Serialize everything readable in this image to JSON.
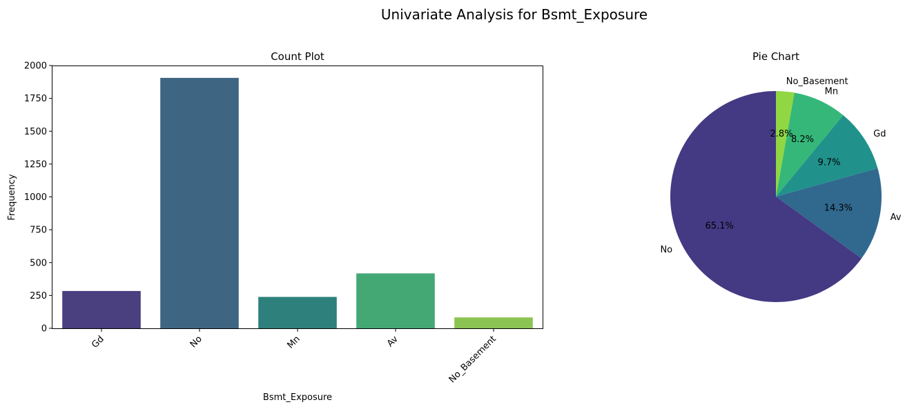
{
  "figure": {
    "title": "Univariate Analysis for Bsmt_Exposure"
  },
  "chart_data": [
    {
      "type": "bar",
      "title": "Count Plot",
      "xlabel": "Bsmt_Exposure",
      "ylabel": "Frequency",
      "categories": [
        "Gd",
        "No",
        "Mn",
        "Av",
        "No_Basement"
      ],
      "values": [
        284,
        1906,
        239,
        418,
        83
      ],
      "colors": [
        "#4a3f7f",
        "#3e6683",
        "#2e807c",
        "#44a875",
        "#8cc453"
      ],
      "ylim": [
        0,
        2000
      ],
      "yticks": [
        0,
        250,
        500,
        750,
        1000,
        1250,
        1500,
        1750,
        2000
      ],
      "xtick_rotation": 45,
      "grid": false,
      "legend": false
    },
    {
      "type": "pie",
      "title": "Pie Chart",
      "labels": [
        "No",
        "Av",
        "Gd",
        "Mn",
        "No_Basement"
      ],
      "percentages": [
        65.1,
        14.3,
        9.7,
        8.2,
        2.8
      ],
      "percent_labels": [
        "65.1%",
        "14.3%",
        "9.7%",
        "8.2%",
        "2.8%"
      ],
      "colors": [
        "#443983",
        "#31688e",
        "#21918c",
        "#35b779",
        "#90d743"
      ],
      "start_angle": 90,
      "direction": "counterclockwise"
    }
  ]
}
